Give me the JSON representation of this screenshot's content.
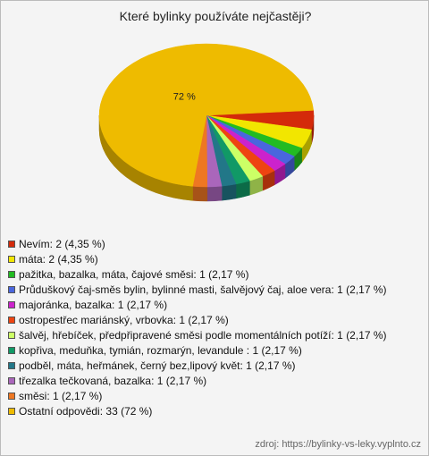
{
  "chart_data": {
    "type": "pie3d",
    "title": "Které bylinky používáte nejčastěji?",
    "series": [
      {
        "name": "Nevím: 2 (4,35 %)",
        "color": "#d42a0a",
        "value": 4.35
      },
      {
        "name": "máta: 2 (4,35 %)",
        "color": "#f2e600",
        "value": 4.35
      },
      {
        "name": "pažitka, bazalka, máta, čajové směsi: 1 (2,17 %)",
        "color": "#22bb22",
        "value": 2.17
      },
      {
        "name": "Průduškový čaj-směs bylin, bylinné masti, šalvějový čaj, aloe vera: 1 (2,17 %)",
        "color": "#4a66dd",
        "value": 2.17
      },
      {
        "name": "majoránka, bazalka: 1 (2,17 %)",
        "color": "#cc22cc",
        "value": 2.17
      },
      {
        "name": "ostropestřec mariánský, vrbovka: 1 (2,17 %)",
        "color": "#ee4411",
        "value": 2.17
      },
      {
        "name": "šalvěj, hřebíček, předpřipravené směsi podle momentálních potíží: 1 (2,17 %)",
        "color": "#ccff66",
        "value": 2.17
      },
      {
        "name": "kopřiva, meduňka, tymián, rozmarýn, levandule : 1 (2,17 %)",
        "color": "#119966",
        "value": 2.17
      },
      {
        "name": "podběl, máta, heřmánek, černý bez,lipový květ: 1 (2,17 %)",
        "color": "#227788",
        "value": 2.17
      },
      {
        "name": "třezalka tečkovaná, bazalka: 1 (2,17 %)",
        "color": "#aa66bb",
        "value": 2.17
      },
      {
        "name": "směsi: 1 (2,17 %)",
        "color": "#ee7722",
        "value": 2.17
      },
      {
        "name": "Ostatní odpovědi: 33 (72 %)",
        "color": "#eebb00",
        "value": 72,
        "value_label": "72 %"
      }
    ],
    "source": "zdroj: https://bylinky-vs-leky.vyplnto.cz"
  }
}
